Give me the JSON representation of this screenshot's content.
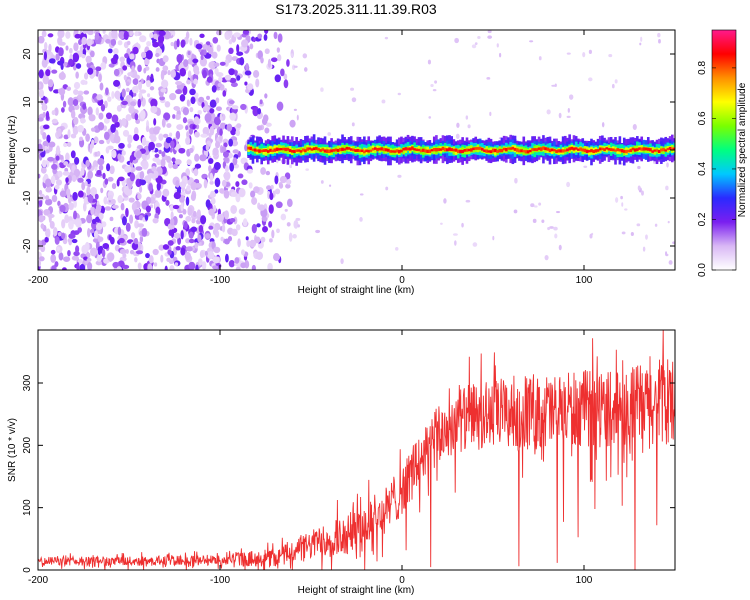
{
  "title": "S173.2025.311.11.39.R03",
  "chart_data": [
    {
      "type": "heatmap",
      "name": "spectrogram",
      "xlabel": "Height of straight line (km)",
      "ylabel": "Frequency (Hz)",
      "xlim": [
        -200,
        150
      ],
      "ylim": [
        -25,
        25
      ],
      "xticks": [
        -200,
        -100,
        0,
        100
      ],
      "yticks": [
        -20,
        -10,
        0,
        10,
        20
      ],
      "xtick_labels": [
        "-200",
        "-100",
        "0",
        "100"
      ],
      "ytick_labels": [
        "-20",
        "-10",
        "0",
        "10",
        "20"
      ],
      "description_values": {
        "noise_region_x": [
          -200,
          -85
        ],
        "signal_start_x": -85,
        "signal_center_frequency": 0,
        "signal_half_width_hz": 1.5
      },
      "colorbar": {
        "label": "Normalized spectral amplitude",
        "range": [
          0.0,
          0.95
        ],
        "ticks": [
          0.0,
          0.2,
          0.4,
          0.6,
          0.8
        ],
        "tick_labels": [
          "0.0",
          "0.2",
          "0.4",
          "0.6",
          "0.8"
        ],
        "colormap": [
          "#ffffff",
          "#d9b8f5",
          "#7a1ff0",
          "#2a2aff",
          "#00c8ff",
          "#00ff80",
          "#7aff00",
          "#ffff00",
          "#ff9000",
          "#ff0000",
          "#ff1a8c"
        ]
      }
    },
    {
      "type": "line",
      "name": "snr",
      "xlabel": "Height of straight line (km)",
      "ylabel": "SNR (10 * v/v)",
      "xlim": [
        -200,
        150
      ],
      "ylim": [
        0,
        385
      ],
      "xticks": [
        -200,
        -100,
        0,
        100
      ],
      "yticks": [
        0,
        100,
        200,
        300
      ],
      "xtick_labels": [
        "-200",
        "-100",
        "0",
        "100"
      ],
      "ytick_labels": [
        "0",
        "100",
        "200",
        "300"
      ],
      "color": "#ee3030",
      "envelope_mean": {
        "x": [
          -200,
          -150,
          -100,
          -70,
          -50,
          -30,
          -10,
          0,
          10,
          20,
          30,
          50,
          80,
          100,
          120,
          150
        ],
        "y": [
          14,
          14,
          16,
          20,
          40,
          60,
          90,
          130,
          175,
          215,
          240,
          250,
          255,
          258,
          262,
          268
        ]
      },
      "envelope_spread": {
        "x": [
          -200,
          -100,
          -60,
          -30,
          0,
          30,
          60,
          100,
          150
        ],
        "y": [
          10,
          12,
          25,
          50,
          60,
          75,
          85,
          90,
          95
        ]
      }
    }
  ]
}
